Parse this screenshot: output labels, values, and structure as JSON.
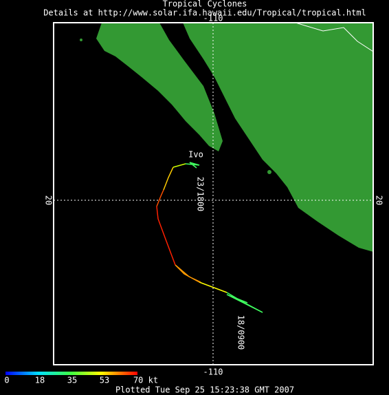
{
  "header": {
    "title": "Tropical Cyclones",
    "subtitle": "Details at http://www.solar.ifa.hawaii.edu/Tropical/tropical.html"
  },
  "axes": {
    "lon_top": "-110",
    "lon_bottom": "-110",
    "lat_left": "20",
    "lat_right": "20"
  },
  "storm": {
    "name": "Ivo",
    "labels": [
      "23/1800",
      "18/0900"
    ]
  },
  "colorbar": {
    "ticks": [
      "0",
      "18",
      "35",
      "53",
      "70 kt"
    ]
  },
  "footer": "Plotted Tue Sep 25 15:23:38 GMT 2007"
}
